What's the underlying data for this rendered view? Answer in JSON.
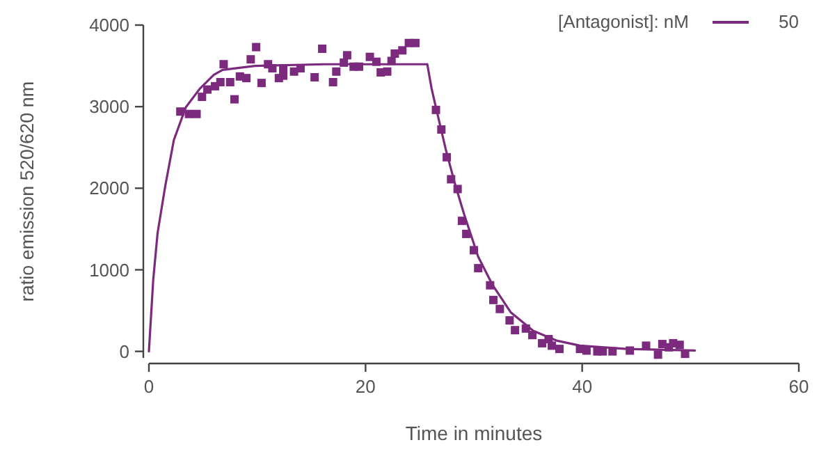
{
  "chart_data": {
    "type": "scatter",
    "xlabel": "Time in minutes",
    "ylabel": "ratio emission 520/620 nm",
    "legend_title": "[Antagonist]: nM",
    "legend": "top right",
    "xlim": [
      0,
      60
    ],
    "ylim": [
      -80,
      4000
    ],
    "xticks": [
      0,
      20,
      40,
      60
    ],
    "yticks": [
      0,
      1000,
      2000,
      3000,
      4000
    ],
    "series": [
      {
        "type": "line",
        "name": "50",
        "color": "#7b2a7e",
        "marker": "none",
        "x": [
          0,
          0.4,
          0.8,
          1.5,
          2.3,
          3.4,
          4.7,
          6,
          6.8,
          9.8,
          16.2,
          25.7,
          26.1,
          26.5,
          27.4,
          28.2,
          29.1,
          30.4,
          31.7,
          33.4,
          35.5,
          37.7,
          39.8,
          44.1,
          50.4
        ],
        "values": [
          0,
          880,
          1450,
          2020,
          2590,
          2990,
          3220,
          3390,
          3450,
          3500,
          3520,
          3520,
          3220,
          2990,
          2480,
          2080,
          1680,
          1160,
          820,
          480,
          250,
          130,
          70,
          30,
          10
        ]
      },
      {
        "color": "#7b2a7e",
        "marker": "square",
        "x": [
          2.9,
          3.7,
          4.4,
          4.9,
          5.4,
          6.1,
          6.6,
          6.9,
          7.5,
          7.9,
          8.4,
          9.0,
          9.4,
          9.9,
          10.4,
          11,
          11.4,
          12,
          12.4,
          12.4,
          13.4,
          14,
          15.3,
          16,
          17,
          17.3,
          18,
          18.3,
          18.9,
          19.4,
          20.4,
          21,
          21.4,
          22,
          22.4,
          22.7,
          23.4,
          24,
          24.6,
          26.5,
          27,
          27.5,
          27.9,
          28.5,
          28.9,
          29.3,
          30,
          30.4,
          31.5,
          31.8,
          32.4,
          33.3,
          33.8,
          34.8,
          35.4,
          36.3,
          36.9,
          37.2,
          37.9,
          39.8,
          40.4,
          41.4,
          41.9,
          42.8,
          44.4,
          45.9,
          47,
          47.4,
          48,
          48.4,
          49,
          49.5
        ],
        "values": [
          2940,
          2910,
          2910,
          3120,
          3210,
          3250,
          3300,
          3520,
          3300,
          3090,
          3370,
          3350,
          3580,
          3730,
          3290,
          3520,
          3470,
          3350,
          3380,
          3470,
          3430,
          3470,
          3360,
          3710,
          3300,
          3430,
          3540,
          3630,
          3490,
          3490,
          3610,
          3550,
          3420,
          3430,
          3560,
          3650,
          3690,
          3780,
          3780,
          2960,
          2720,
          2380,
          2110,
          1990,
          1600,
          1440,
          1240,
          1020,
          810,
          630,
          520,
          380,
          260,
          280,
          200,
          100,
          150,
          70,
          30,
          30,
          10,
          0,
          0,
          0,
          10,
          70,
          -40,
          90,
          50,
          100,
          80,
          -30
        ]
      }
    ]
  }
}
